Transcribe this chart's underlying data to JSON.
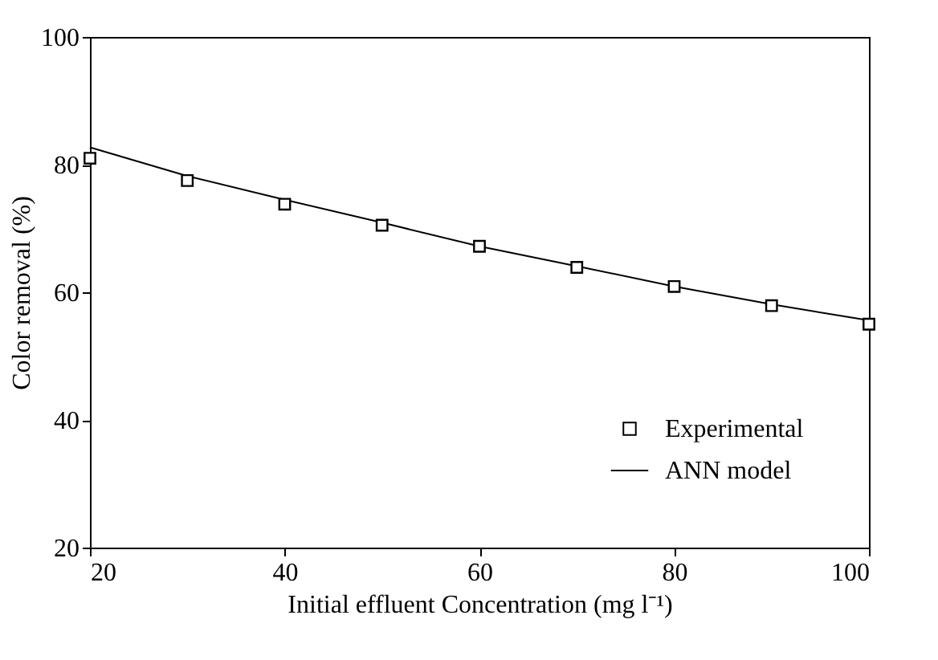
{
  "chart_data": {
    "type": "scatter",
    "xlabel": "Initial effluent Concentration (mg l⁻¹)",
    "ylabel": "Color removal (%)",
    "x": [
      20,
      30,
      40,
      50,
      60,
      70,
      80,
      90,
      100
    ],
    "series": [
      {
        "name": "Experimental",
        "type": "scatter",
        "marker": "square",
        "color": "#000000",
        "values": [
          81.0,
          77.5,
          73.8,
          70.5,
          67.2,
          63.9,
          60.9,
          57.9,
          55.0
        ]
      },
      {
        "name": "ANN model",
        "type": "line",
        "marker": "none",
        "line_style": "solid",
        "color": "#000000",
        "values": [
          82.7,
          78.2,
          74.5,
          70.9,
          67.2,
          64.1,
          60.9,
          58.1,
          55.6
        ]
      }
    ],
    "xlim": [
      20,
      100
    ],
    "xticks": [
      20,
      40,
      60,
      80,
      100
    ],
    "ylim": [
      20,
      100
    ],
    "yticks": [
      20,
      40,
      60,
      80,
      100
    ],
    "grid": false,
    "legend": "bottom right"
  }
}
